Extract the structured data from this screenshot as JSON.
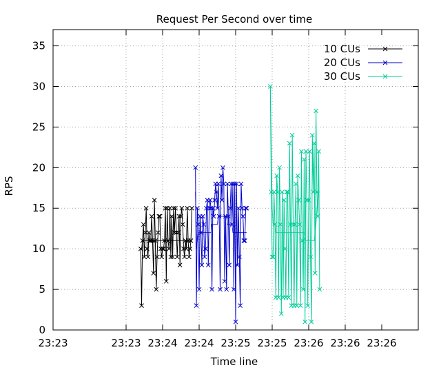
{
  "chart_data": {
    "type": "line",
    "title": "Request Per Second over time",
    "xlabel": "Time line",
    "ylabel": "RPS",
    "ylim": [
      0,
      37
    ],
    "yticks": [
      0,
      5,
      10,
      15,
      20,
      25,
      30,
      35
    ],
    "xlim": [
      "23:23:00",
      "23:26:20"
    ],
    "xticks": [
      {
        "t": "23:23:00",
        "label": "23:23"
      },
      {
        "t": "23:23:40",
        "label": "23:23"
      },
      {
        "t": "23:24:00",
        "label": "23:24"
      },
      {
        "t": "23:24:20",
        "label": "23:24"
      },
      {
        "t": "23:24:40",
        "label": "23:25"
      },
      {
        "t": "23:25:00",
        "label": "23:25"
      },
      {
        "t": "23:25:20",
        "label": "23:26"
      },
      {
        "t": "23:25:40",
        "label": "23:26"
      },
      {
        "t": "23:26:00",
        "label": "23:26"
      }
    ],
    "grid": true,
    "legend_position": "top-right",
    "series": [
      {
        "name": "10 CUs",
        "color": "#000000",
        "start": "23:23:48",
        "step_seconds": 0.5,
        "values": [
          10,
          3,
          11,
          13,
          9,
          12,
          15,
          10,
          9,
          12,
          11,
          11,
          14,
          11,
          7,
          16,
          11,
          5,
          9,
          12,
          14,
          14,
          10,
          9,
          10,
          10,
          11,
          15,
          6,
          15,
          11,
          10,
          15,
          9,
          14,
          9,
          15,
          12,
          15,
          12,
          9,
          12,
          14,
          8,
          14,
          15,
          13,
          10,
          9,
          11,
          10,
          15,
          11,
          9,
          10,
          11,
          15
        ],
        "avg_values": [
          10,
          10,
          11,
          11,
          11,
          11,
          11,
          11,
          11,
          11,
          11,
          11,
          11,
          11,
          11,
          11,
          11,
          11,
          11,
          11,
          11,
          11,
          11,
          11,
          11,
          11,
          11,
          11,
          11,
          11,
          11,
          11,
          11,
          11,
          11,
          11,
          11,
          11,
          11,
          11,
          11,
          11,
          11,
          11,
          11,
          11,
          11,
          11,
          11,
          11,
          11,
          11,
          11,
          11,
          11,
          11,
          11
        ]
      },
      {
        "name": "20 CUs",
        "color": "#0000cc",
        "start": "23:24:18",
        "step_seconds": 0.5,
        "values": [
          20,
          3,
          15,
          13,
          5,
          14,
          12,
          8,
          14,
          13,
          9,
          10,
          15,
          16,
          8,
          15,
          16,
          15,
          5,
          15,
          14,
          16,
          18,
          17,
          15,
          18,
          14,
          5,
          19,
          16,
          20,
          18,
          6,
          14,
          5,
          18,
          14,
          8,
          15,
          18,
          13,
          18,
          5,
          18,
          1,
          18,
          8,
          15,
          9,
          3,
          18,
          15,
          14,
          11,
          11,
          15,
          15
        ],
        "avg_values": [
          17,
          10,
          11,
          12,
          12,
          12,
          12,
          12,
          12,
          12,
          12,
          12,
          12,
          12,
          12,
          12,
          12,
          12,
          13,
          13,
          13,
          13,
          13,
          13,
          13,
          14,
          14,
          14,
          14,
          14,
          14,
          14,
          14,
          14,
          14,
          13,
          13,
          13,
          13,
          13,
          13,
          12,
          12,
          12,
          12,
          12,
          12,
          12,
          12,
          12,
          12,
          12,
          12,
          12,
          12,
          12,
          12
        ]
      },
      {
        "name": "30 CUs",
        "color": "#00cc99",
        "start": "23:24:59",
        "step_seconds": 0.5,
        "values": [
          30,
          17,
          9,
          9,
          17,
          13,
          4,
          19,
          17,
          4,
          20,
          13,
          2,
          17,
          4,
          16,
          10,
          4,
          17,
          17,
          4,
          23,
          13,
          3,
          24,
          13,
          3,
          13,
          18,
          3,
          19,
          16,
          13,
          3,
          22,
          11,
          5,
          21,
          1,
          22,
          16,
          3,
          16,
          22,
          9,
          1,
          24,
          17,
          23,
          7,
          27,
          17,
          14,
          22,
          5
        ],
        "avg_values": [
          30,
          23,
          15,
          13,
          13,
          13,
          12,
          12,
          12,
          12,
          12,
          12,
          12,
          12,
          12,
          12,
          12,
          12,
          12,
          12,
          12,
          12,
          12,
          12,
          12,
          12,
          12,
          12,
          12,
          12,
          12,
          12,
          12,
          12,
          12,
          12,
          12,
          12,
          11,
          11,
          11,
          11,
          11,
          11,
          11,
          11,
          11,
          11,
          11,
          12,
          13,
          15,
          16,
          17,
          17
        ]
      }
    ]
  }
}
